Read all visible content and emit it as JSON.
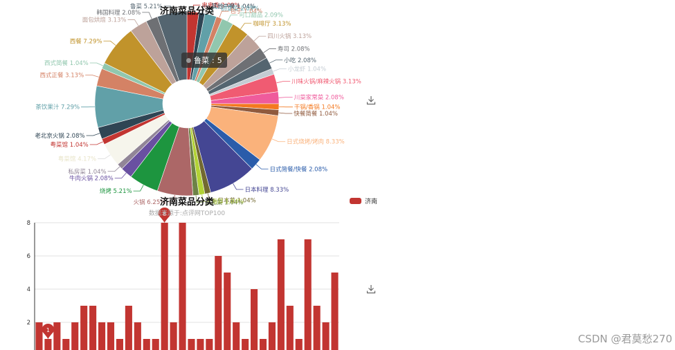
{
  "chart_data": [
    {
      "type": "pie",
      "variant": "donut",
      "title": "济南菜品分类",
      "label_format": "name percent",
      "slices": [
        {
          "name": "串串香",
          "value": 2,
          "percent": "2.09%",
          "color": "#c23531"
        },
        {
          "name": "其他中餐",
          "value": 1,
          "percent": "1.04%",
          "color": "#2f4554"
        },
        {
          "name": "创意菜",
          "value": 2,
          "percent": "2.09%",
          "color": "#61a0a8"
        },
        {
          "name": "包子",
          "value": 1,
          "percent": "1.04%",
          "color": "#d48265"
        },
        {
          "name": "可口甜品",
          "value": 2,
          "percent": "2.09%",
          "color": "#91c7ae"
        },
        {
          "name": "咖啡厅",
          "value": 3,
          "percent": "3.13%",
          "color": "#c1932b"
        },
        {
          "name": "四川火锅",
          "value": 3,
          "percent": "3.13%",
          "color": "#bda29a"
        },
        {
          "name": "寿司",
          "value": 2,
          "percent": "2.08%",
          "color": "#6e7074"
        },
        {
          "name": "小吃",
          "value": 2,
          "percent": "2.08%",
          "color": "#546570"
        },
        {
          "name": "小龙虾",
          "value": 1,
          "percent": "1.04%",
          "color": "#c4ccd3"
        },
        {
          "name": "川味火锅/麻辣火锅",
          "value": 3,
          "percent": "3.13%",
          "color": "#f05b72"
        },
        {
          "name": "川菜家常菜",
          "value": 2,
          "percent": "2.08%",
          "color": "#ef5b9c"
        },
        {
          "name": "干锅/香锅",
          "value": 1,
          "percent": "1.04%",
          "color": "#f47920"
        },
        {
          "name": "快餐简餐",
          "value": 1,
          "percent": "1.04%",
          "color": "#905a3d"
        },
        {
          "name": "日式烧烤/烤肉",
          "value": 8,
          "percent": "8.33%",
          "color": "#fab27b"
        },
        {
          "name": "日式简餐/快餐",
          "value": 2,
          "percent": "2.08%",
          "color": "#2a5caa"
        },
        {
          "name": "日本料理",
          "value": 8,
          "percent": "8.33%",
          "color": "#444693"
        },
        {
          "name": "日本菜",
          "value": 1,
          "percent": "1.04%",
          "color": "#726930"
        },
        {
          "name": "海鲜",
          "value": 1,
          "percent": "1.04%",
          "color": "#b2d235"
        },
        {
          "name": "湖北菜",
          "value": 1,
          "percent": "1.04%",
          "color": "#6d8346"
        },
        {
          "name": "火锅",
          "value": 6,
          "percent": "6.25%",
          "color": "#ac6767"
        },
        {
          "name": "烧烤",
          "value": 5,
          "percent": "5.21%",
          "color": "#1d953f"
        },
        {
          "name": "牛肉火锅",
          "value": 2,
          "percent": "2.08%",
          "color": "#6950a1"
        },
        {
          "name": "私房菜",
          "value": 1,
          "percent": "1.04%",
          "color": "#918597"
        },
        {
          "name": "粤菜馆",
          "value": 4,
          "percent": "4.17%",
          "color": "#f6f5ec"
        },
        {
          "name": "粤菜馆",
          "value": 1,
          "percent": "1.04%",
          "color": "#c23531"
        },
        {
          "name": "老北京火锅",
          "value": 2,
          "percent": "2.08%",
          "color": "#2f4554"
        },
        {
          "name": "茶饮果汁",
          "value": 7,
          "percent": "7.29%",
          "color": "#61a0a8"
        },
        {
          "name": "西式正餐",
          "value": 3,
          "percent": "3.13%",
          "color": "#d48265"
        },
        {
          "name": "西式简餐",
          "value": 1,
          "percent": "1.04%",
          "color": "#91c7ae"
        },
        {
          "name": "西餐",
          "value": 7,
          "percent": "7.29%",
          "color": "#c1932b"
        },
        {
          "name": "面包烘焙",
          "value": 3,
          "percent": "3.13%",
          "color": "#bda29a"
        },
        {
          "name": "韩国料理",
          "value": 2,
          "percent": "2.08%",
          "color": "#6e7074"
        },
        {
          "name": "鲁菜",
          "value": 5,
          "percent": "5.21%",
          "color": "#546570"
        }
      ],
      "tooltip": {
        "name": "鲁菜",
        "value": "5",
        "separator": ": "
      }
    },
    {
      "type": "bar",
      "title": "济南菜品分类",
      "subtitle": "数据来源于:点评网TOP100",
      "legend": [
        "济南"
      ],
      "series": [
        {
          "name": "济南",
          "color": "#c23531",
          "values": [
            2,
            1,
            2,
            1,
            2,
            3,
            3,
            2,
            2,
            1,
            3,
            2,
            1,
            1,
            8,
            2,
            8,
            1,
            1,
            1,
            6,
            5,
            2,
            1,
            4,
            1,
            2,
            7,
            3,
            1,
            7,
            3,
            2,
            5
          ]
        }
      ],
      "ylim": [
        0,
        8
      ],
      "yticks": [
        2,
        4,
        6,
        8
      ],
      "markpoints": [
        {
          "label": "8",
          "index": 14
        },
        {
          "label": "1",
          "index": 1
        }
      ]
    }
  ],
  "watermark": "CSDN @君莫愁270",
  "icons": {
    "download": "download-icon"
  }
}
